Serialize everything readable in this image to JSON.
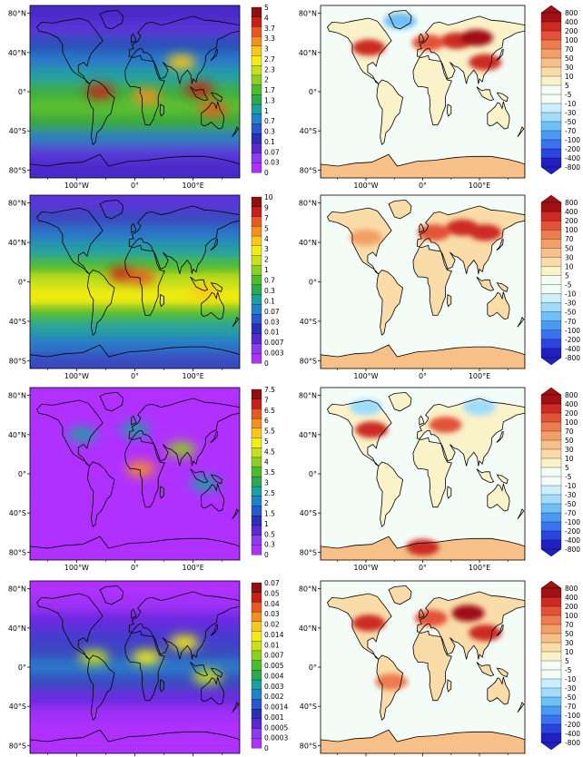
{
  "map_axes": {
    "lat_labels": [
      "80°N",
      "40°N",
      "0°",
      "40°S",
      "80°S"
    ],
    "lat_values": [
      80,
      40,
      0,
      -40,
      -80
    ],
    "lon_labels": [
      "100°W",
      "0°",
      "100°E"
    ],
    "lon_values": [
      -100,
      0,
      100
    ]
  },
  "colors": {
    "seq": [
      "#b030ff",
      "#8a3cf0",
      "#5a2ad0",
      "#2830b8",
      "#2858d0",
      "#1f82c8",
      "#1aa0a0",
      "#2aaa4a",
      "#4cbc2c",
      "#8ccf1e",
      "#c8e01a",
      "#f4ee10",
      "#f8c818",
      "#f49020",
      "#e85820",
      "#c82018",
      "#901010"
    ],
    "div": [
      "#2020c0",
      "#2a44e0",
      "#3a72f0",
      "#4a9af4",
      "#70c0f8",
      "#a0dcfc",
      "#cdeefc",
      "#f4fcf8",
      "#f4fcf8",
      "#faf2c8",
      "#fadca8",
      "#f6c088",
      "#f2a068",
      "#ee7c50",
      "#e25238",
      "#cc2a22",
      "#a01014"
    ],
    "land_seq": "#4e8cc8",
    "land_div": "#f8eed0"
  },
  "panels": [
    {
      "id": "row1-left",
      "kind": "seq",
      "colorbar_labels": [
        "5",
        "4",
        "3.7",
        "3.3",
        "3",
        "2.7",
        "2.3",
        "2",
        "1.7",
        "1.3",
        "1",
        "0.7",
        "0.3",
        "0.1",
        "0.07",
        "0.03",
        "0"
      ],
      "bands": [
        "#4a2ac8",
        "#5a36d8",
        "#2b4fb8",
        "#2a78c8",
        "#28a0a0",
        "#3cae3c",
        "#5cc030",
        "#3aa838",
        "#2e7cc0",
        "#5a36d8",
        "#4a2ac8"
      ],
      "hotspots": [
        {
          "lat": 0,
          "lon": -60,
          "level": 15
        },
        {
          "lat": -5,
          "lon": 20,
          "level": 13
        },
        {
          "lat": 2,
          "lon": 110,
          "level": 15
        },
        {
          "lat": -18,
          "lon": 135,
          "level": 14
        },
        {
          "lat": 30,
          "lon": 80,
          "level": 12
        }
      ]
    },
    {
      "id": "row1-right",
      "kind": "div",
      "colorbar_labels": [
        "800",
        "400",
        "200",
        "100",
        "70",
        "50",
        "30",
        "10",
        "5",
        "-5",
        "-10",
        "-30",
        "-50",
        "-70",
        "-100",
        "-200",
        "-400",
        "-800"
      ],
      "land_level": 9,
      "polar_level": 11,
      "hotspots": [
        {
          "lat": 52,
          "lon": 60,
          "level": 15
        },
        {
          "lat": 55,
          "lon": 95,
          "level": 16
        },
        {
          "lat": 45,
          "lon": -95,
          "level": 15
        },
        {
          "lat": 50,
          "lon": 10,
          "level": 14
        },
        {
          "lat": 30,
          "lon": 110,
          "level": 15
        },
        {
          "lat": 72,
          "lon": -40,
          "level": 4
        }
      ]
    },
    {
      "id": "row2-left",
      "kind": "seq",
      "colorbar_labels": [
        "10",
        "9",
        "7",
        "5",
        "4",
        "3",
        "2",
        "1",
        "0.7",
        "0.3",
        "0.1",
        "0.07",
        "0.03",
        "0.01",
        "0.007",
        "0.003",
        "0"
      ],
      "bands": [
        "#5a36d8",
        "#3a48c0",
        "#2a78c8",
        "#28a0a0",
        "#4cbc2c",
        "#c8e01a",
        "#f4ee10",
        "#4cbc2c",
        "#28a0a0",
        "#2a78c8",
        "#3a48c0"
      ],
      "hotspots": [
        {
          "lat": 8,
          "lon": -20,
          "level": 15
        },
        {
          "lat": 5,
          "lon": 10,
          "level": 14
        },
        {
          "lat": -10,
          "lon": 120,
          "level": 12
        }
      ]
    },
    {
      "id": "row2-right",
      "kind": "div",
      "colorbar_labels": [
        "800",
        "400",
        "200",
        "100",
        "70",
        "50",
        "30",
        "10",
        "5",
        "-5",
        "-10",
        "-30",
        "-50",
        "-70",
        "-100",
        "-200",
        "-400",
        "-800"
      ],
      "land_level": 10,
      "polar_level": 11,
      "hotspots": [
        {
          "lat": 55,
          "lon": 70,
          "level": 15
        },
        {
          "lat": 50,
          "lon": 110,
          "level": 15
        },
        {
          "lat": 50,
          "lon": 20,
          "level": 14
        },
        {
          "lat": 45,
          "lon": -100,
          "level": 12
        }
      ]
    },
    {
      "id": "row3-left",
      "kind": "seq",
      "colorbar_labels": [
        "7.5",
        "7",
        "6.5",
        "6",
        "5.5",
        "5",
        "4.5",
        "4",
        "3.5",
        "3",
        "2.5",
        "2",
        "1.5",
        "1",
        "0.5",
        "0.3",
        "0"
      ],
      "bands": [
        "#b030ff",
        "#b030ff",
        "#b030ff",
        "#b030ff",
        "#b030ff",
        "#b030ff",
        "#b030ff",
        "#b030ff",
        "#b030ff",
        "#b030ff",
        "#b030ff"
      ],
      "hotspots": [
        {
          "lat": 5,
          "lon": 10,
          "level": 13
        },
        {
          "lat": 25,
          "lon": 80,
          "level": 9
        },
        {
          "lat": 45,
          "lon": 0,
          "level": 6
        },
        {
          "lat": 40,
          "lon": -90,
          "level": 6
        },
        {
          "lat": -10,
          "lon": 120,
          "level": 6
        }
      ]
    },
    {
      "id": "row3-right",
      "kind": "div",
      "colorbar_labels": [
        "800",
        "400",
        "200",
        "100",
        "70",
        "50",
        "30",
        "10",
        "5",
        "-5",
        "-10",
        "-30",
        "-50",
        "-70",
        "-100",
        "-200",
        "-400",
        "-800"
      ],
      "land_level": 9,
      "polar_level": 11,
      "hotspots": [
        {
          "lat": 68,
          "lon": -100,
          "level": 5
        },
        {
          "lat": 68,
          "lon": 100,
          "level": 5
        },
        {
          "lat": 45,
          "lon": -90,
          "level": 15
        },
        {
          "lat": 50,
          "lon": 40,
          "level": 14
        },
        {
          "lat": -75,
          "lon": 0,
          "level": 15
        }
      ]
    },
    {
      "id": "row4-left",
      "kind": "seq",
      "colorbar_labels": [
        "0.07",
        "0.05",
        "0.04",
        "0.03",
        "0.02",
        "0.014",
        "0.01",
        "0.007",
        "0.005",
        "0.004",
        "0.003",
        "0.002",
        "0.0014",
        "0.001",
        "0.0005",
        "0.0003",
        "0"
      ],
      "bands": [
        "#b030ff",
        "#a030f8",
        "#6a2ae0",
        "#4a3ad0",
        "#3a48c0",
        "#2a78c8",
        "#3a48c0",
        "#6a2ae0",
        "#a030f8",
        "#b030ff",
        "#b030ff"
      ],
      "hotspots": [
        {
          "lat": 10,
          "lon": 20,
          "level": 11
        },
        {
          "lat": 10,
          "lon": -70,
          "level": 10
        },
        {
          "lat": 25,
          "lon": 85,
          "level": 11
        },
        {
          "lat": -10,
          "lon": 125,
          "level": 10
        }
      ]
    },
    {
      "id": "row4-right",
      "kind": "div",
      "colorbar_labels": [
        "800",
        "400",
        "200",
        "100",
        "70",
        "50",
        "30",
        "10",
        "5",
        "-5",
        "-10",
        "-30",
        "-50",
        "-70",
        "-100",
        "-200",
        "-400",
        "-800"
      ],
      "land_level": 10,
      "polar_level": 11,
      "hotspots": [
        {
          "lat": 55,
          "lon": 80,
          "level": 16
        },
        {
          "lat": 45,
          "lon": -95,
          "level": 15
        },
        {
          "lat": 35,
          "lon": 110,
          "level": 15
        },
        {
          "lat": 50,
          "lon": 15,
          "level": 14
        },
        {
          "lat": -15,
          "lon": -55,
          "level": 13
        }
      ]
    }
  ]
}
